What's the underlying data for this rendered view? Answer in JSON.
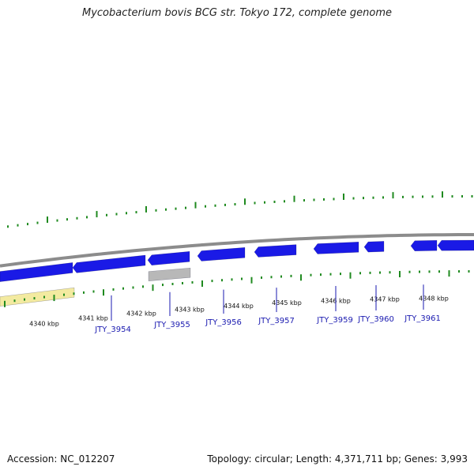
{
  "title": "Mycobacterium bovis BCG str. Tokyo 172, complete genome",
  "footer": {
    "accession": "Accession: NC_012207",
    "summary": "Topology: circular; Length: 4,371,711 bp; Genes: 3,993"
  },
  "colors": {
    "gene_forward": "#1a1ae6",
    "gene_highlight": "#4a4aff",
    "pseudogene": "#f3eaa0",
    "rna_gray": "#b8b8b8",
    "backbone": "#8c8c8c",
    "gc_ticks": "#1f8a1f",
    "label": "#1a1ab0"
  },
  "ticks": [
    {
      "label": "4340 kbp"
    },
    {
      "label": "4341 kbp"
    },
    {
      "label": "4342 kbp"
    },
    {
      "label": "4343 kbp"
    },
    {
      "label": "4344 kbp"
    },
    {
      "label": "4345 kbp"
    },
    {
      "label": "4346 kbp"
    },
    {
      "label": "4347 kbp"
    },
    {
      "label": "4348 kbp"
    }
  ],
  "genes": [
    {
      "label": "JTY_3954"
    },
    {
      "label": "JTY_3955"
    },
    {
      "label": "JTY_3956"
    },
    {
      "label": "JTY_3957"
    },
    {
      "label": "JTY_3959"
    },
    {
      "label": "JTY_3960"
    },
    {
      "label": "JTY_3961"
    }
  ]
}
